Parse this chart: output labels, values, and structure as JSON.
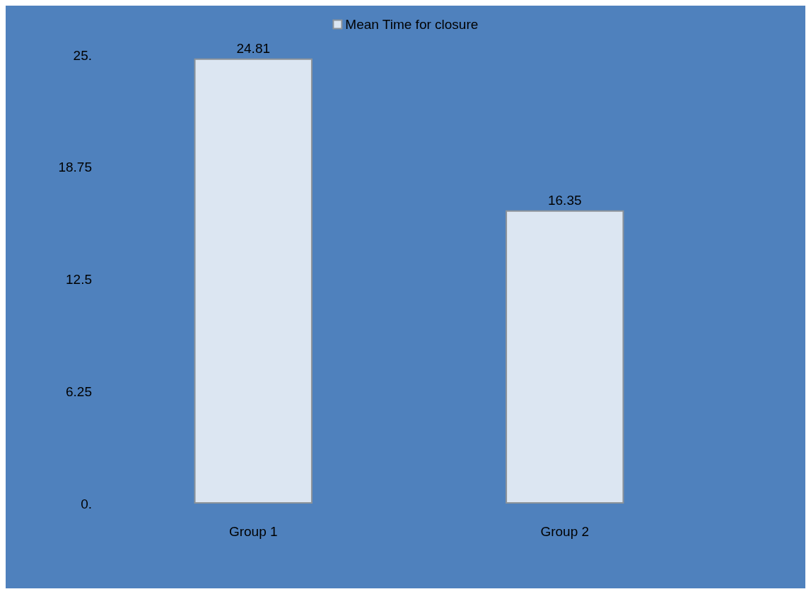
{
  "chart_data": {
    "type": "bar",
    "categories": [
      "Group 1",
      "Group 2"
    ],
    "series": [
      {
        "name": "Mean Time for closure",
        "color": "#dce6f2",
        "values": [
          24.81,
          16.35
        ]
      }
    ],
    "ylim": [
      0,
      25
    ],
    "yticks": [
      {
        "value": 0,
        "label": "0."
      },
      6.25,
      12.5,
      18.75,
      {
        "value": 25,
        "label": "25."
      }
    ],
    "data_labels": true,
    "legend": "top",
    "grid": false
  }
}
